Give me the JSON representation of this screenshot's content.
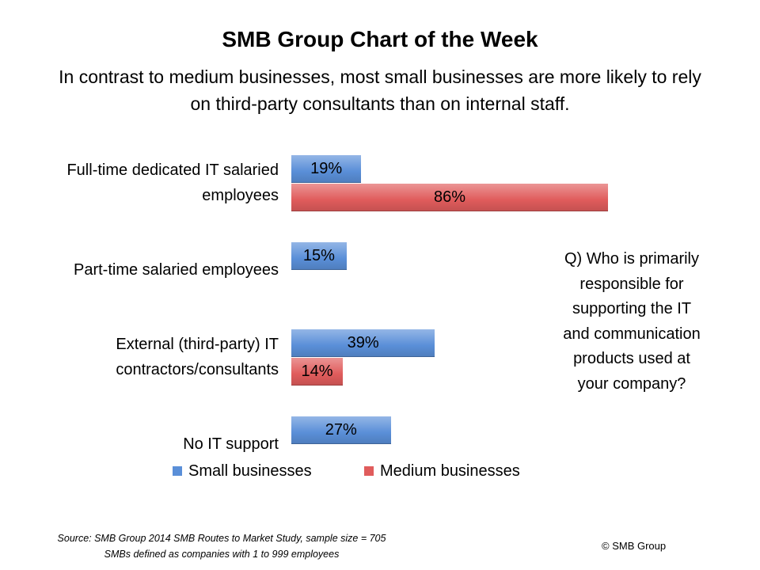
{
  "chart_data": {
    "type": "bar",
    "orientation": "horizontal",
    "title": "SMB Group Chart of the Week",
    "subtitle": "In contrast to medium businesses, most small businesses are more likely to rely on third-party consultants than on internal staff.",
    "categories": [
      "Full-time dedicated IT salaried employees",
      "Part-time salaried employees",
      "External (third-party) IT contractors/consultants",
      "No IT support"
    ],
    "series": [
      {
        "name": "Small businesses",
        "color": "#5a8fd8",
        "values": [
          19,
          15,
          39,
          27
        ],
        "value_labels": [
          "19%",
          "15%",
          "39%",
          "27%"
        ]
      },
      {
        "name": "Medium businesses",
        "color": "#e05c5c",
        "values": [
          86,
          null,
          14,
          null
        ],
        "value_labels": [
          "86%",
          null,
          "14%",
          null
        ]
      }
    ],
    "legend": "bottom",
    "annotation": "Q) Who is primarily responsible for supporting the IT and communication products used at your company?",
    "source": [
      "Source: SMB Group 2014 SMB Routes to Market Study, sample size = 705",
      "SMBs defined as companies with 1 to 999 employees"
    ],
    "copyright": "© SMB Group"
  }
}
